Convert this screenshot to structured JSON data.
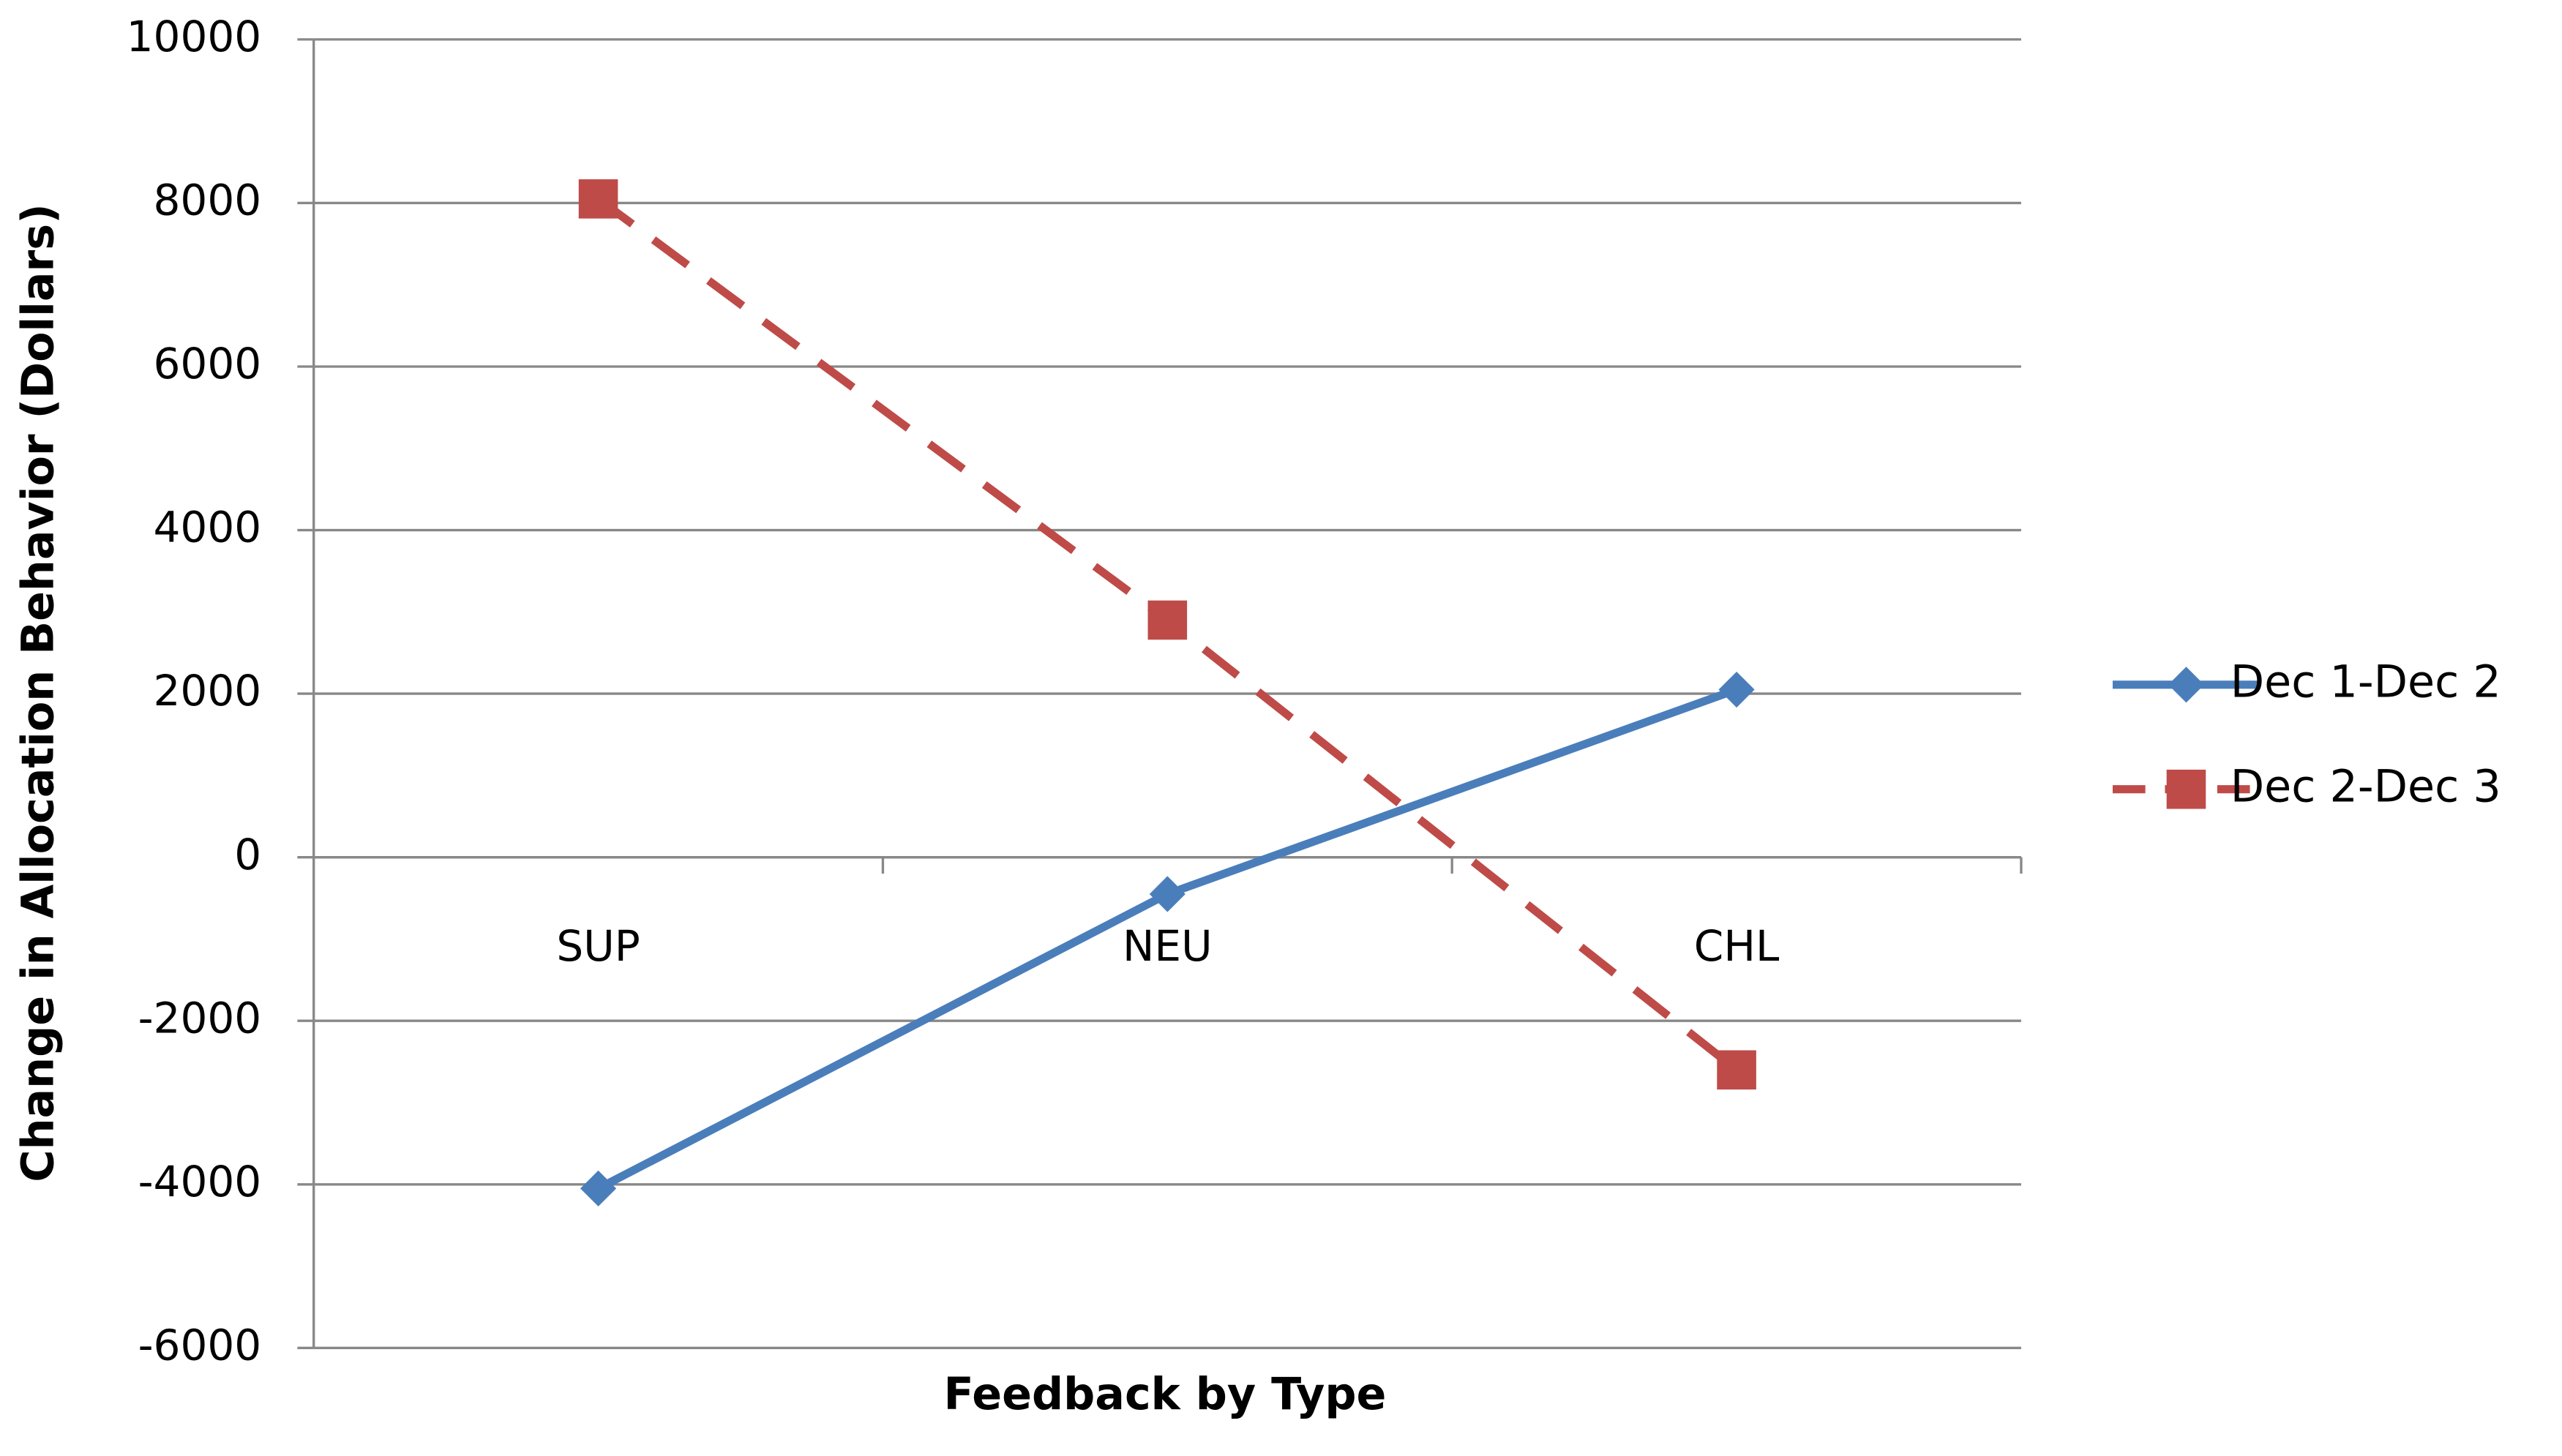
{
  "chart_data": {
    "type": "line",
    "x_label": "Feedback by Type",
    "y_label": "Change in Allocation Behavior (Dollars)",
    "categories": [
      "SUP",
      "NEU",
      "CHL"
    ],
    "series": [
      {
        "name": "Dec 1-Dec 2",
        "color": "#4a7ebb",
        "marker": "diamond",
        "dashed": false,
        "values": [
          -4050,
          -450,
          2050
        ]
      },
      {
        "name": "Dec 2-Dec 3",
        "color": "#be4b48",
        "marker": "square",
        "dashed": true,
        "values": [
          8050,
          2900,
          -2600
        ]
      }
    ],
    "ylim": [
      -6000,
      10000
    ],
    "yticks": [
      -6000,
      -4000,
      -2000,
      0,
      2000,
      4000,
      6000,
      8000,
      10000
    ],
    "grid": true,
    "legend": "right"
  }
}
